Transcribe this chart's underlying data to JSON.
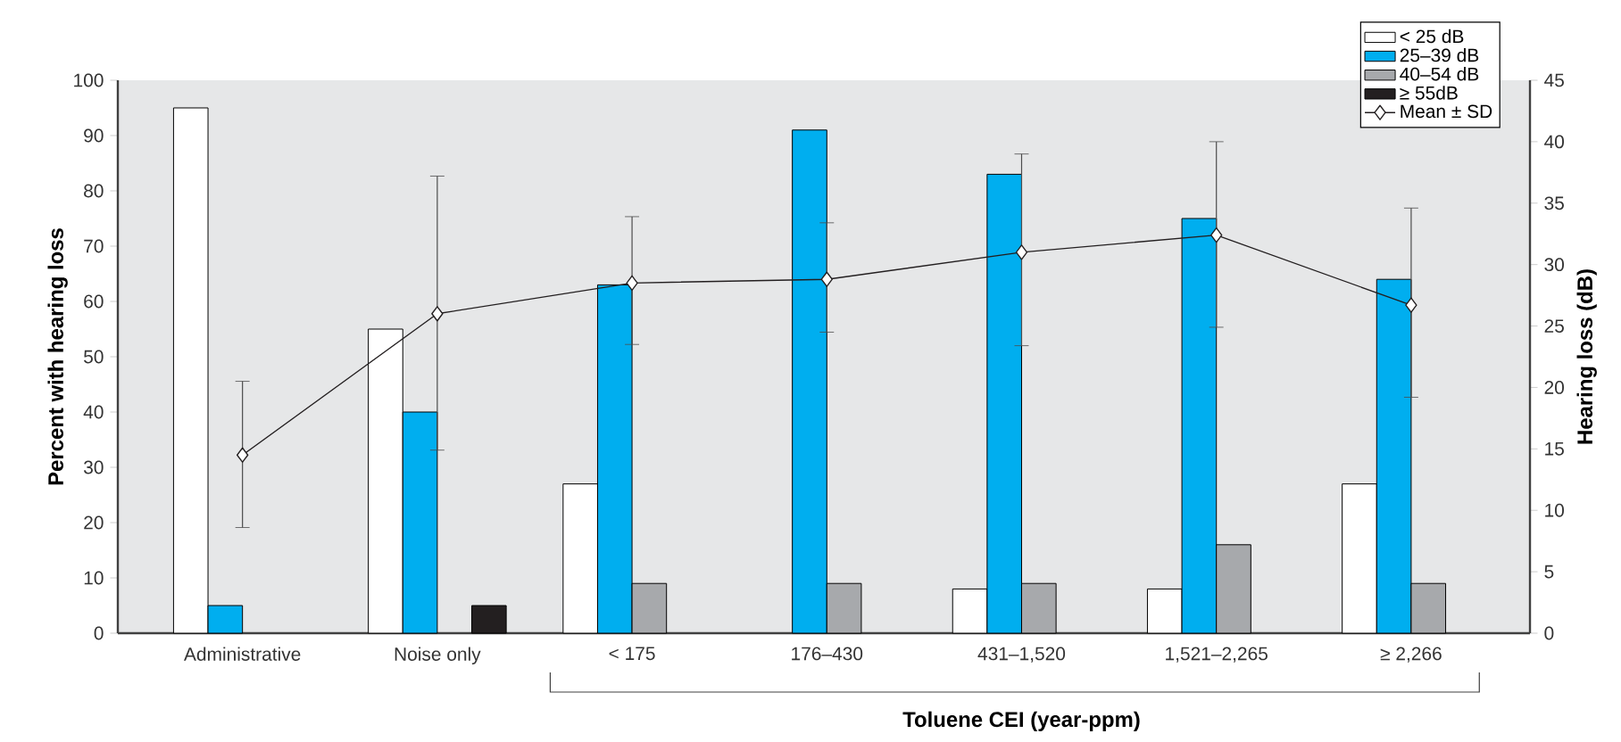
{
  "chart_data": {
    "type": "bar",
    "categories": [
      "Administrative",
      "Noise only",
      "< 175",
      "176–430",
      "431–1,520",
      "1,521–2,265",
      "≥ 2,266"
    ],
    "series": [
      {
        "name": "< 25 dB",
        "color": "#ffffff",
        "values": [
          95,
          55,
          27,
          0,
          8,
          8,
          27
        ]
      },
      {
        "name": "25–39 dB",
        "color": "#00aeef",
        "values": [
          5,
          40,
          63,
          91,
          83,
          75,
          64
        ]
      },
      {
        "name": "40–54 dB",
        "color": "#a7a9ac",
        "values": [
          0,
          0,
          9,
          9,
          9,
          16,
          9
        ]
      },
      {
        "name": "≥ 55dB",
        "color": "#231f20",
        "values": [
          0,
          5,
          0,
          0,
          0,
          0,
          0
        ]
      },
      {
        "name": "Mean ± SD",
        "type": "line",
        "axis": "y2",
        "color": "#231f20",
        "marker": "diamond",
        "values": [
          14.5,
          26,
          28.5,
          28.8,
          31,
          32.4,
          26.7
        ],
        "errors": [
          [
            8.6,
            20.5
          ],
          [
            14.9,
            37.2
          ],
          [
            23.5,
            33.9
          ],
          [
            24.5,
            33.4
          ],
          [
            23.4,
            39
          ],
          [
            24.9,
            40
          ],
          [
            19.2,
            34.6
          ]
        ]
      }
    ],
    "xlabel": "Toluene CEI (year-ppm)",
    "ylabel": "Percent with hearing loss",
    "y2label": "Hearing loss (dB)",
    "ylim": [
      0,
      100
    ],
    "yticks": [
      0,
      10,
      20,
      30,
      40,
      50,
      60,
      70,
      80,
      90,
      100
    ],
    "y2lim": [
      0,
      45
    ],
    "y2ticks": [
      0,
      5,
      10,
      15,
      20,
      25,
      30,
      35,
      40,
      45
    ],
    "legend": "top right",
    "grid": false
  }
}
